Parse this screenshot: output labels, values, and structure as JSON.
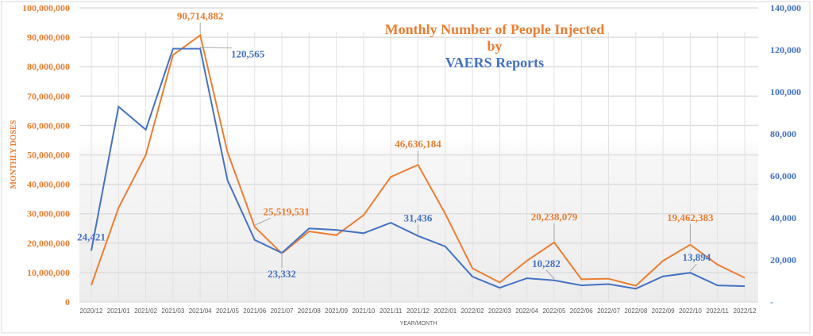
{
  "chart_data": {
    "type": "line",
    "title_line1": "Monthly Number of People Injected",
    "title_line2": "by",
    "title_line3": "VAERS Reports",
    "xlabel": "YEAR/MONTH",
    "ylabel": "MONTHLY DOSES",
    "ylim": [
      0,
      100000000
    ],
    "y2lim": [
      0,
      140000
    ],
    "y_ticks": [
      "0",
      "10,000,000",
      "20,000,000",
      "30,000,000",
      "40,000,000",
      "50,000,000",
      "60,000,000",
      "70,000,000",
      "80,000,000",
      "90,000,000",
      "100,000,000"
    ],
    "y2_ticks": [
      "-",
      "20,000",
      "40,000",
      "60,000",
      "80,000",
      "100,000",
      "120,000",
      "140,000"
    ],
    "categories": [
      "2020/12",
      "2021/01",
      "2021/02",
      "2021/03",
      "2021/04",
      "2021/05",
      "2021/06",
      "2021/07",
      "2021/08",
      "2021/09",
      "2021/10",
      "2021/11",
      "2021/12",
      "2022/01",
      "2022/02",
      "2022/03",
      "2022/04",
      "2022/05",
      "2022/06",
      "2022/07",
      "2022/08",
      "2022/09",
      "2022/10",
      "2022/11",
      "2022/12"
    ],
    "grid": true,
    "series": [
      {
        "axis": "left",
        "color": "#ED7D31",
        "values": [
          5700000,
          32000000,
          50000000,
          84000000,
          90714882,
          51000000,
          25519531,
          16500000,
          24000000,
          22700000,
          29500000,
          42500000,
          46636184,
          30000000,
          11400000,
          6600000,
          14000000,
          20238079,
          7700000,
          7900000,
          5500000,
          14000000,
          19462383,
          12700000,
          8200000
        ]
      },
      {
        "axis": "right",
        "color": "#4472C4",
        "values": [
          24421,
          93000,
          82000,
          120565,
          120565,
          58000,
          29500,
          23332,
          35000,
          34300,
          32700,
          37700,
          31436,
          26400,
          12000,
          6700,
          11300,
          10282,
          7900,
          8500,
          6300,
          12200,
          13894,
          7900,
          7500
        ]
      }
    ],
    "annotations": [
      {
        "series": 0,
        "index": 4,
        "text": "90,714,882"
      },
      {
        "series": 0,
        "index": 6,
        "text": "25,519,531"
      },
      {
        "series": 0,
        "index": 12,
        "text": "46,636,184"
      },
      {
        "series": 0,
        "index": 17,
        "text": "20,238,079"
      },
      {
        "series": 0,
        "index": 22,
        "text": "19,462,383"
      },
      {
        "series": 1,
        "index": 0,
        "text": "24,421"
      },
      {
        "series": 1,
        "index": 4,
        "text": "120,565"
      },
      {
        "series": 1,
        "index": 7,
        "text": "23,332"
      },
      {
        "series": 1,
        "index": 12,
        "text": "31,436"
      },
      {
        "series": 1,
        "index": 17,
        "text": "10,282"
      },
      {
        "series": 1,
        "index": 22,
        "text": "13,894"
      }
    ]
  }
}
